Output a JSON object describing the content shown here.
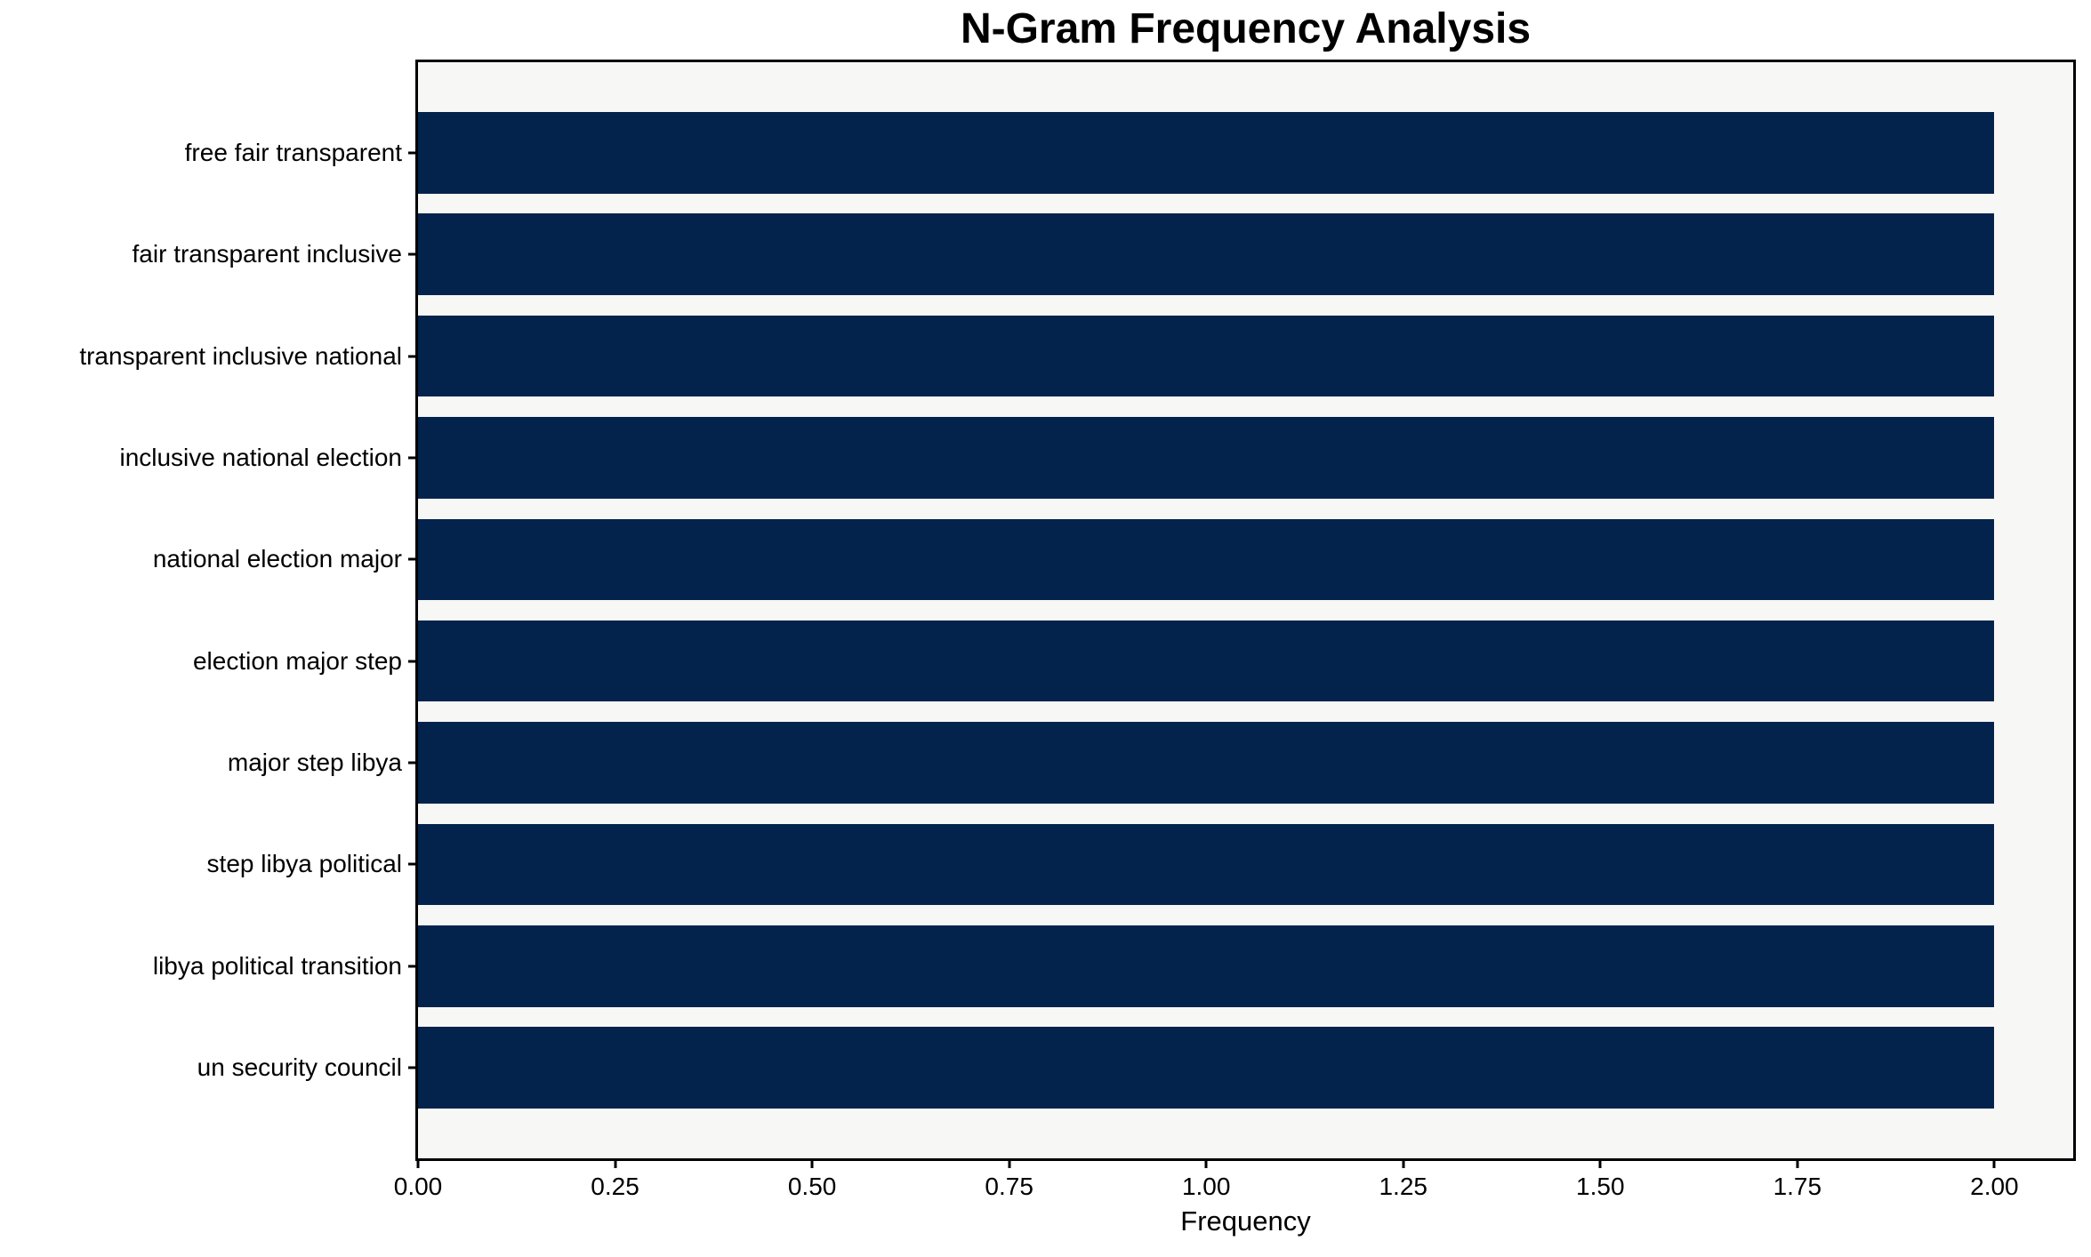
{
  "page": {
    "background": "#ffffff"
  },
  "chart_data": {
    "type": "bar",
    "orientation": "horizontal",
    "title": "N-Gram Frequency Analysis",
    "xlabel": "Frequency",
    "ylabel": "",
    "categories": [
      "free fair transparent",
      "fair transparent inclusive",
      "transparent inclusive national",
      "inclusive national election",
      "national election major",
      "election major step",
      "major step libya",
      "step libya political",
      "libya political transition",
      "un security council"
    ],
    "values": [
      2,
      2,
      2,
      2,
      2,
      2,
      2,
      2,
      2,
      2
    ],
    "xlim": [
      0,
      2.1
    ],
    "xticks": [
      {
        "value": 0.0,
        "label": "0.00"
      },
      {
        "value": 0.25,
        "label": "0.25"
      },
      {
        "value": 0.5,
        "label": "0.50"
      },
      {
        "value": 0.75,
        "label": "0.75"
      },
      {
        "value": 1.0,
        "label": "1.00"
      },
      {
        "value": 1.25,
        "label": "1.25"
      },
      {
        "value": 1.5,
        "label": "1.50"
      },
      {
        "value": 1.75,
        "label": "1.75"
      },
      {
        "value": 2.0,
        "label": "2.00"
      }
    ],
    "bar_color": "#03234d",
    "plot_background": "#f7f7f5",
    "spine_color": "#000000",
    "text_color": "#000000",
    "grid": false,
    "legend": "none"
  }
}
